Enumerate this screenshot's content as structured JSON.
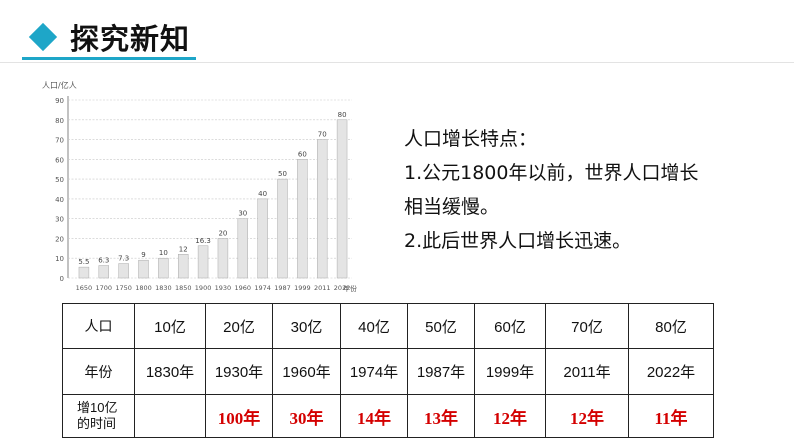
{
  "header": {
    "title": "探究新知"
  },
  "chart_data": {
    "type": "bar",
    "ylabel": "人口/亿人",
    "xlabel": "年份",
    "ylim": [
      0,
      90
    ],
    "yticks": [
      0,
      10,
      20,
      30,
      40,
      50,
      60,
      70,
      80,
      90
    ],
    "categories": [
      "1650",
      "1700",
      "1750",
      "1800",
      "1830",
      "1850",
      "1900",
      "1930",
      "1960",
      "1974",
      "1987",
      "1999",
      "2011",
      "2022"
    ],
    "values": [
      5.5,
      6.3,
      7.3,
      9,
      10,
      12,
      16.3,
      20,
      30,
      40,
      50,
      60,
      70,
      80
    ],
    "value_labels": [
      "5.5",
      "6.3",
      "7.3",
      "9",
      "10",
      "12",
      "16.3",
      "20",
      "30",
      "40",
      "50",
      "60",
      "70",
      "80"
    ],
    "grid": true
  },
  "notes": {
    "heading": "人口增长特点：",
    "line1": "1.公元1800年以前，世界人口增长",
    "line2": "相当缓慢。",
    "line3": "2.此后世界人口增长迅速。"
  },
  "table": {
    "row1_label": "人口",
    "row2_label": "年份",
    "row3_label_a": "增10亿",
    "row3_label_b": "的时间",
    "population": [
      "10亿",
      "20亿",
      "30亿",
      "40亿",
      "50亿",
      "60亿",
      "70亿",
      "80亿"
    ],
    "years": [
      "1830年",
      "1930年",
      "1960年",
      "1974年",
      "1987年",
      "1999年",
      "2011年",
      "2022年"
    ],
    "times": [
      "",
      "100年",
      "30年",
      "14年",
      "13年",
      "12年",
      "12年",
      "11年"
    ]
  }
}
